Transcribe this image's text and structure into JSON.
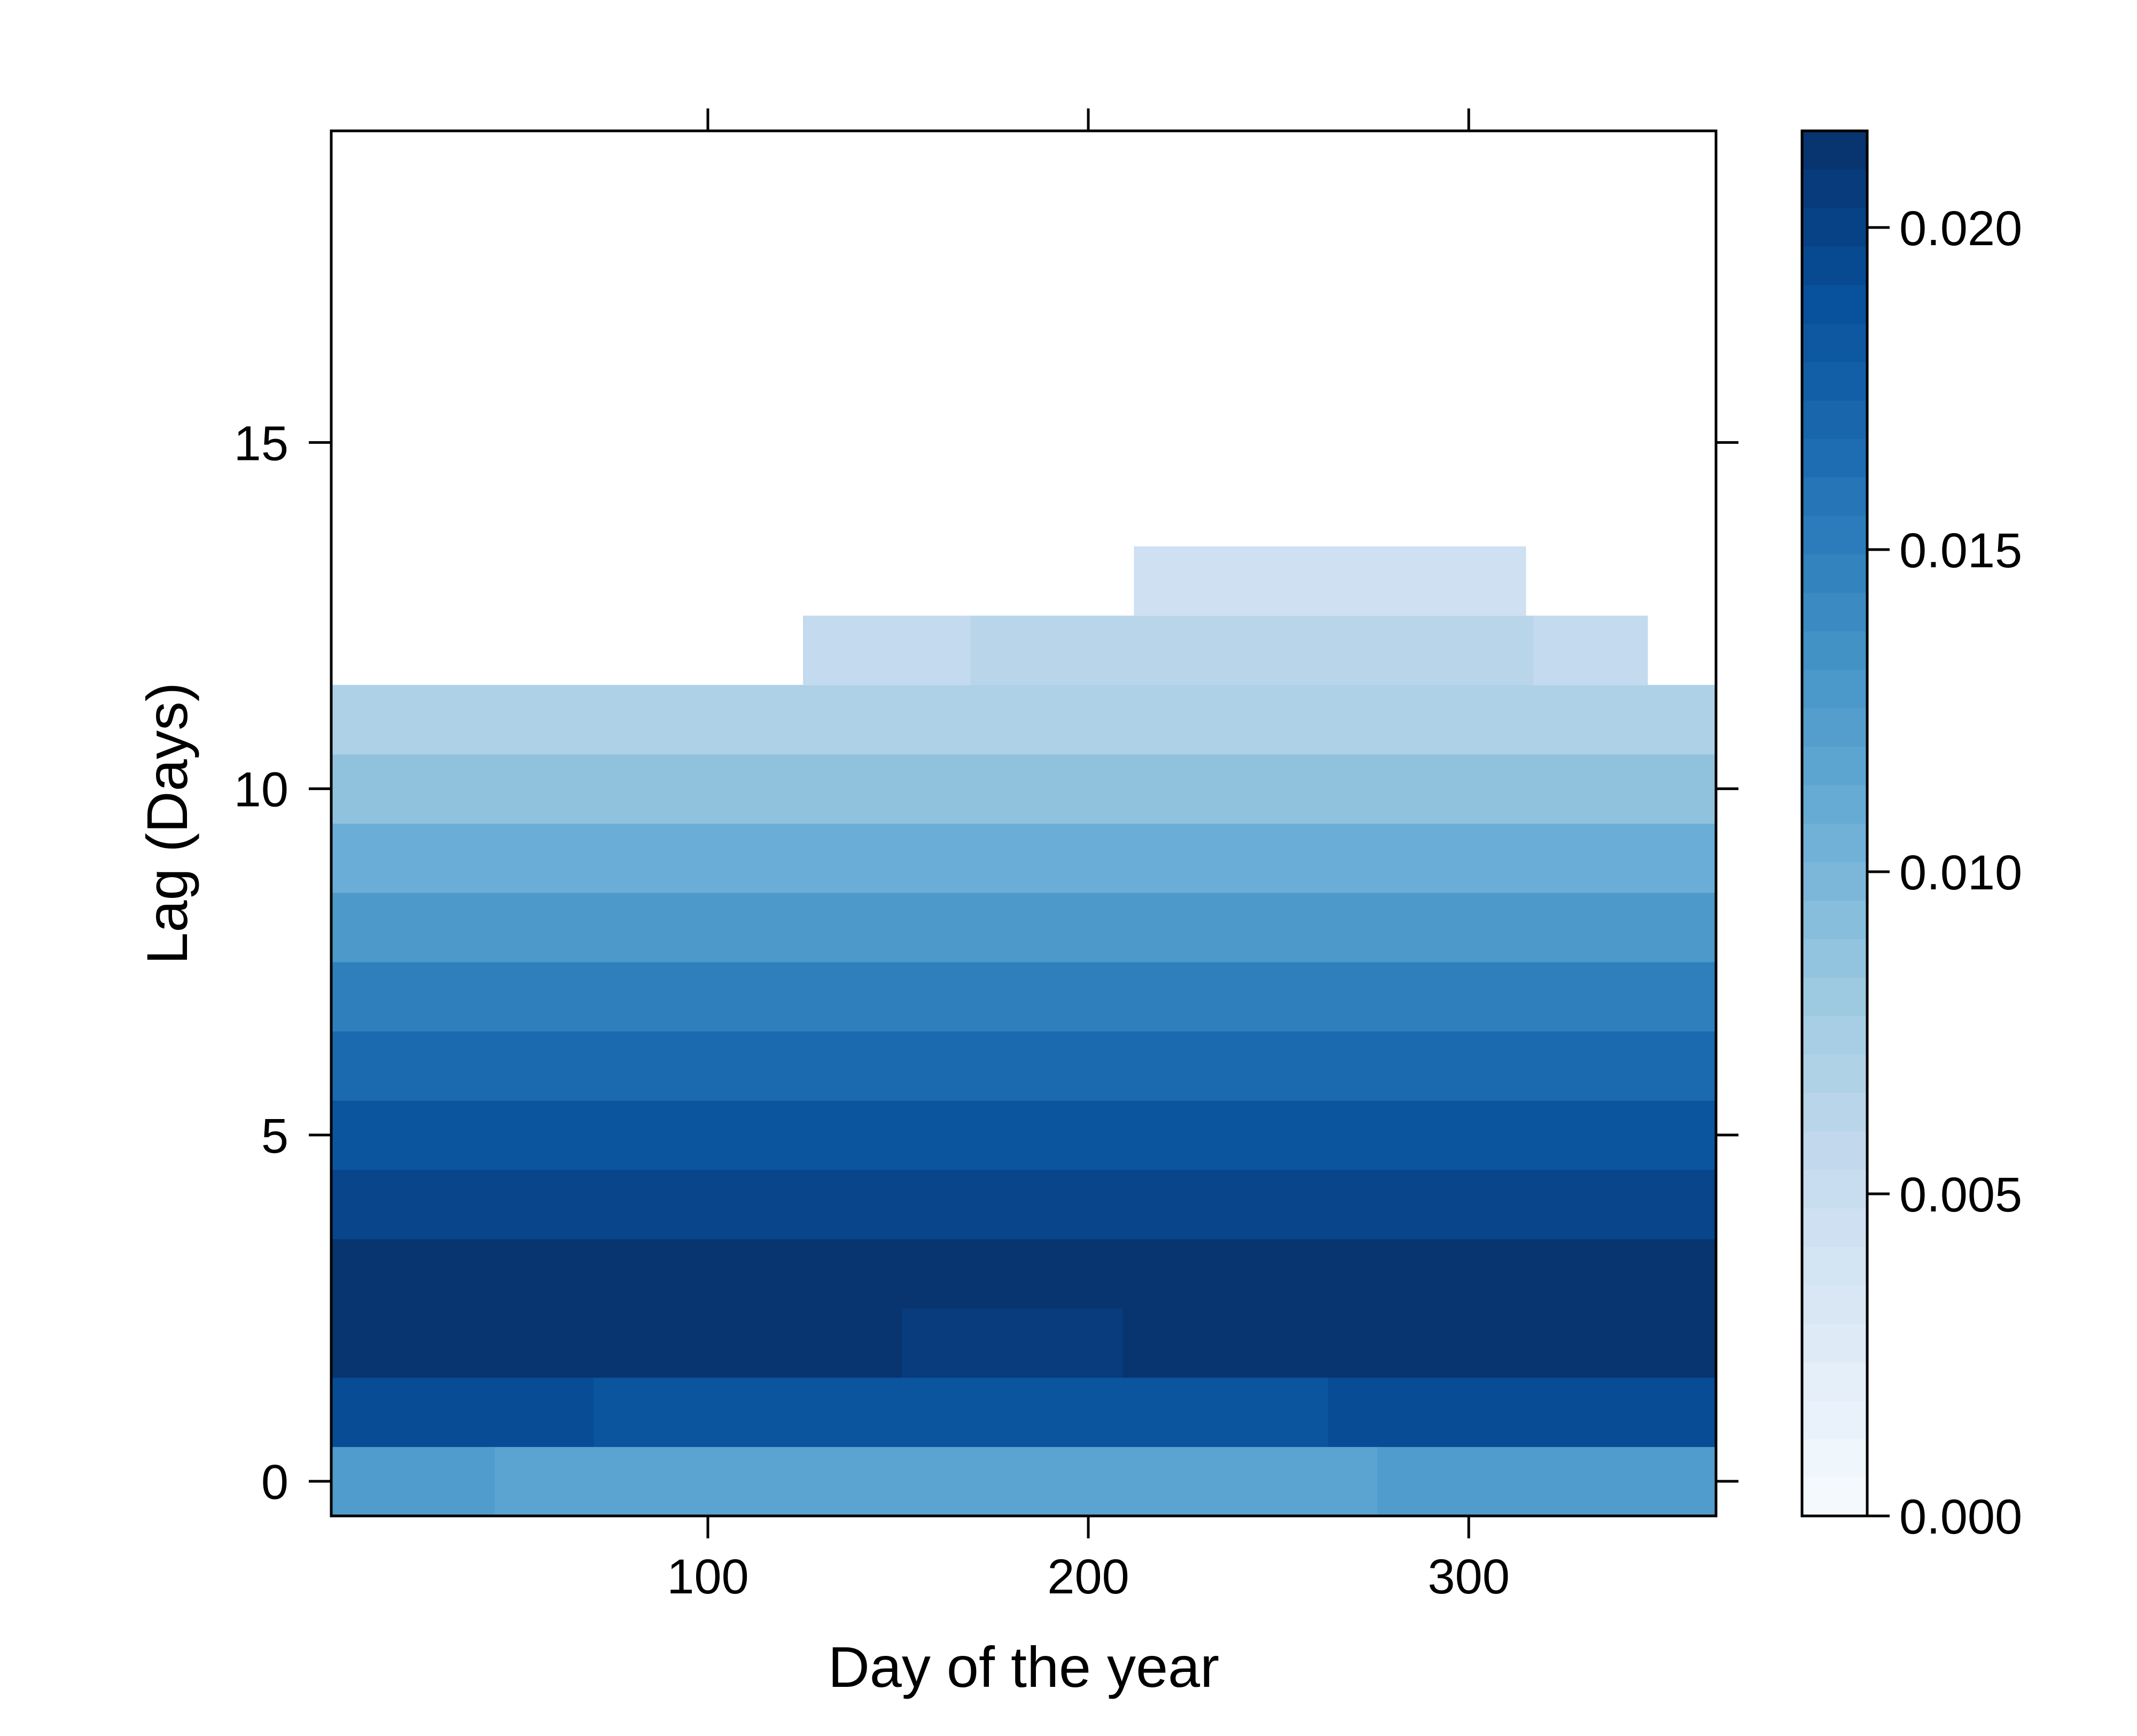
{
  "chart_data": {
    "type": "heatmap",
    "title": "",
    "xlabel": "Day of the year",
    "ylabel": "Lag (Days)",
    "xlim": [
      1,
      365
    ],
    "ylim": [
      -0.5,
      19.5
    ],
    "x_ticks": [
      "100",
      "200",
      "300"
    ],
    "x_tick_values": [
      100,
      200,
      300
    ],
    "y_ticks": [
      "0",
      "5",
      "10",
      "15"
    ],
    "y_tick_values": [
      0,
      5,
      10,
      15
    ],
    "colorbar": {
      "range": [
        0.0,
        0.0215
      ],
      "ticks": [
        "0.000",
        "0.005",
        "0.010",
        "0.015",
        "0.020"
      ],
      "tick_values": [
        0.0,
        0.005,
        0.01,
        0.015,
        0.02
      ],
      "low_color": "#f7fbff",
      "high_color": "#08306b"
    },
    "rows": [
      {
        "lag": 0,
        "segments": [
          {
            "x_from": 1,
            "x_to": 44,
            "value": 0.0125
          },
          {
            "x_from": 44,
            "x_to": 276,
            "value": 0.0118
          },
          {
            "x_from": 276,
            "x_to": 365,
            "value": 0.0125
          }
        ]
      },
      {
        "lag": 1,
        "segments": [
          {
            "x_from": 1,
            "x_to": 70,
            "value": 0.0192
          },
          {
            "x_from": 70,
            "x_to": 263,
            "value": 0.0185
          },
          {
            "x_from": 263,
            "x_to": 365,
            "value": 0.0192
          }
        ]
      },
      {
        "lag": 2,
        "segments": [
          {
            "x_from": 1,
            "x_to": 151,
            "value": 0.0212
          },
          {
            "x_from": 151,
            "x_to": 209,
            "value": 0.0205
          },
          {
            "x_from": 209,
            "x_to": 365,
            "value": 0.0212
          }
        ]
      },
      {
        "lag": 3,
        "segments": [
          {
            "x_from": 1,
            "x_to": 365,
            "value": 0.0212
          }
        ]
      },
      {
        "lag": 4,
        "segments": [
          {
            "x_from": 1,
            "x_to": 365,
            "value": 0.0198
          }
        ]
      },
      {
        "lag": 5,
        "segments": [
          {
            "x_from": 1,
            "x_to": 365,
            "value": 0.0185
          }
        ]
      },
      {
        "lag": 6,
        "segments": [
          {
            "x_from": 1,
            "x_to": 365,
            "value": 0.0168
          }
        ]
      },
      {
        "lag": 7,
        "segments": [
          {
            "x_from": 1,
            "x_to": 365,
            "value": 0.015
          }
        ]
      },
      {
        "lag": 8,
        "segments": [
          {
            "x_from": 1,
            "x_to": 365,
            "value": 0.0128
          }
        ]
      },
      {
        "lag": 9,
        "segments": [
          {
            "x_from": 1,
            "x_to": 365,
            "value": 0.0108
          }
        ]
      },
      {
        "lag": 10,
        "segments": [
          {
            "x_from": 1,
            "x_to": 365,
            "value": 0.0088
          }
        ]
      },
      {
        "lag": 11,
        "segments": [
          {
            "x_from": 1,
            "x_to": 365,
            "value": 0.007
          }
        ]
      },
      {
        "lag": 12,
        "segments": [
          {
            "x_from": 125,
            "x_to": 169,
            "value": 0.0055
          },
          {
            "x_from": 169,
            "x_to": 317,
            "value": 0.0063
          },
          {
            "x_from": 317,
            "x_to": 347,
            "value": 0.0055
          }
        ]
      },
      {
        "lag": 13,
        "segments": [
          {
            "x_from": 212,
            "x_to": 315,
            "value": 0.0045
          }
        ]
      }
    ]
  }
}
